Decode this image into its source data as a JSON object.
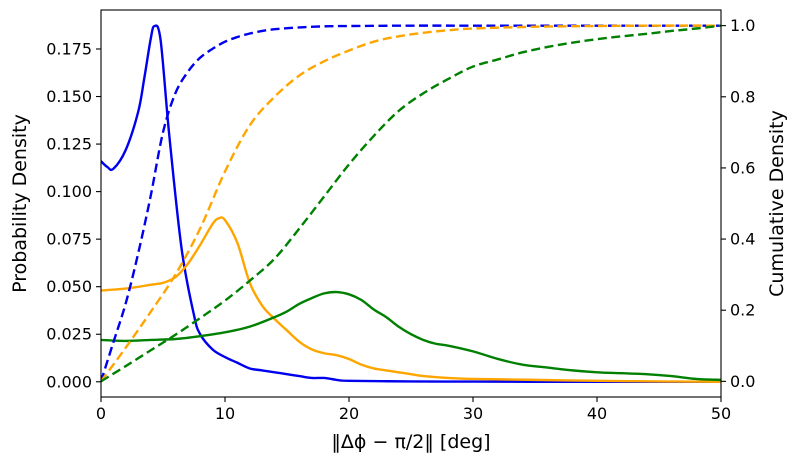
{
  "chart_data": {
    "type": "line",
    "title": "",
    "xlabel": "‖Δϕ − π/2‖ [deg]",
    "ylabel_left": "Probability Density",
    "ylabel_right": "Cumulative Density",
    "xlim": [
      0,
      50
    ],
    "ylim_left": [
      -0.008,
      0.1955
    ],
    "ylim_right": [
      -0.044,
      1.044
    ],
    "x_ticks": [
      "0",
      "10",
      "20",
      "30",
      "40",
      "50"
    ],
    "y_ticks_left": [
      "0.000",
      "0.025",
      "0.050",
      "0.075",
      "0.100",
      "0.125",
      "0.150",
      "0.175"
    ],
    "y_ticks_right": [
      "0.0",
      "0.2",
      "0.4",
      "0.6",
      "0.8",
      "1.0"
    ],
    "grid": false,
    "legend": "none",
    "series": [
      {
        "name": "blue-pdf",
        "axis": "left",
        "style": "solid",
        "color": "#0000ee",
        "points": [
          [
            0,
            0.116
          ],
          [
            0.5,
            0.113
          ],
          [
            1,
            0.112
          ],
          [
            2,
            0.122
          ],
          [
            3,
            0.142
          ],
          [
            3.5,
            0.16
          ],
          [
            4,
            0.18
          ],
          [
            4.3,
            0.187
          ],
          [
            4.8,
            0.18
          ],
          [
            5.5,
            0.13
          ],
          [
            6.5,
            0.07
          ],
          [
            7.5,
            0.035
          ],
          [
            8,
            0.025
          ],
          [
            9,
            0.017
          ],
          [
            10,
            0.013
          ],
          [
            11,
            0.01
          ],
          [
            12,
            0.007
          ],
          [
            13,
            0.006
          ],
          [
            14,
            0.005
          ],
          [
            15,
            0.004
          ],
          [
            16,
            0.003
          ],
          [
            17,
            0.002
          ],
          [
            18,
            0.002
          ],
          [
            19,
            0.001
          ],
          [
            20,
            0.0005
          ],
          [
            25,
            0.0002
          ],
          [
            30,
            0.0001
          ],
          [
            35,
            0
          ],
          [
            40,
            0
          ],
          [
            45,
            0
          ],
          [
            50,
            0
          ]
        ]
      },
      {
        "name": "orange-pdf",
        "axis": "left",
        "style": "solid",
        "color": "#ffa500",
        "points": [
          [
            0,
            0.048
          ],
          [
            2,
            0.049
          ],
          [
            4,
            0.051
          ],
          [
            5,
            0.052
          ],
          [
            6,
            0.055
          ],
          [
            7,
            0.062
          ],
          [
            8,
            0.072
          ],
          [
            9,
            0.083
          ],
          [
            9.5,
            0.086
          ],
          [
            10,
            0.085
          ],
          [
            11,
            0.073
          ],
          [
            12,
            0.052
          ],
          [
            13,
            0.04
          ],
          [
            14,
            0.033
          ],
          [
            15,
            0.027
          ],
          [
            16,
            0.021
          ],
          [
            17,
            0.017
          ],
          [
            18,
            0.015
          ],
          [
            19,
            0.014
          ],
          [
            20,
            0.012
          ],
          [
            21,
            0.009
          ],
          [
            22,
            0.007
          ],
          [
            23,
            0.006
          ],
          [
            24,
            0.005
          ],
          [
            25,
            0.004
          ],
          [
            26,
            0.003
          ],
          [
            28,
            0.002
          ],
          [
            30,
            0.0015
          ],
          [
            35,
            0.001
          ],
          [
            40,
            0.0005
          ],
          [
            45,
            0.0002
          ],
          [
            50,
            0
          ]
        ]
      },
      {
        "name": "green-pdf",
        "axis": "left",
        "style": "solid",
        "color": "#008000",
        "points": [
          [
            0,
            0.022
          ],
          [
            2,
            0.0215
          ],
          [
            4,
            0.022
          ],
          [
            6,
            0.0225
          ],
          [
            8,
            0.024
          ],
          [
            10,
            0.026
          ],
          [
            12,
            0.029
          ],
          [
            14,
            0.034
          ],
          [
            15,
            0.037
          ],
          [
            16,
            0.041
          ],
          [
            17,
            0.044
          ],
          [
            18,
            0.0465
          ],
          [
            19,
            0.0472
          ],
          [
            20,
            0.046
          ],
          [
            21,
            0.043
          ],
          [
            22,
            0.038
          ],
          [
            23,
            0.034
          ],
          [
            24,
            0.029
          ],
          [
            25,
            0.025
          ],
          [
            26,
            0.022
          ],
          [
            27,
            0.02
          ],
          [
            28,
            0.019
          ],
          [
            30,
            0.016
          ],
          [
            32,
            0.012
          ],
          [
            34,
            0.009
          ],
          [
            36,
            0.0075
          ],
          [
            38,
            0.006
          ],
          [
            40,
            0.005
          ],
          [
            42,
            0.0045
          ],
          [
            44,
            0.004
          ],
          [
            46,
            0.003
          ],
          [
            48,
            0.0015
          ],
          [
            50,
            0.001
          ]
        ]
      },
      {
        "name": "blue-cdf",
        "axis": "right",
        "style": "dashed",
        "color": "#0000ee",
        "points": [
          [
            0,
            0
          ],
          [
            1,
            0.11
          ],
          [
            2,
            0.22
          ],
          [
            3,
            0.36
          ],
          [
            4,
            0.52
          ],
          [
            5,
            0.7
          ],
          [
            6,
            0.81
          ],
          [
            7,
            0.87
          ],
          [
            8,
            0.91
          ],
          [
            9,
            0.935
          ],
          [
            10,
            0.955
          ],
          [
            11,
            0.968
          ],
          [
            12,
            0.978
          ],
          [
            13,
            0.985
          ],
          [
            14,
            0.99
          ],
          [
            16,
            0.995
          ],
          [
            18,
            0.998
          ],
          [
            20,
            0.999
          ],
          [
            25,
            1.0
          ],
          [
            30,
            1.0
          ],
          [
            40,
            1.0
          ],
          [
            50,
            1.0
          ]
        ]
      },
      {
        "name": "orange-cdf",
        "axis": "right",
        "style": "dashed",
        "color": "#ffa500",
        "points": [
          [
            0,
            0
          ],
          [
            2,
            0.095
          ],
          [
            4,
            0.195
          ],
          [
            6,
            0.3
          ],
          [
            8,
            0.43
          ],
          [
            10,
            0.59
          ],
          [
            12,
            0.72
          ],
          [
            14,
            0.8
          ],
          [
            16,
            0.86
          ],
          [
            18,
            0.9
          ],
          [
            20,
            0.93
          ],
          [
            22,
            0.955
          ],
          [
            24,
            0.97
          ],
          [
            26,
            0.98
          ],
          [
            28,
            0.987
          ],
          [
            30,
            0.992
          ],
          [
            35,
            0.997
          ],
          [
            40,
            0.999
          ],
          [
            45,
            1.0
          ],
          [
            50,
            1.0
          ]
        ]
      },
      {
        "name": "green-cdf",
        "axis": "right",
        "style": "dashed",
        "color": "#008000",
        "points": [
          [
            0,
            0
          ],
          [
            2,
            0.043
          ],
          [
            4,
            0.087
          ],
          [
            6,
            0.131
          ],
          [
            8,
            0.178
          ],
          [
            10,
            0.227
          ],
          [
            12,
            0.283
          ],
          [
            14,
            0.345
          ],
          [
            16,
            0.43
          ],
          [
            18,
            0.52
          ],
          [
            20,
            0.61
          ],
          [
            22,
            0.69
          ],
          [
            24,
            0.76
          ],
          [
            26,
            0.81
          ],
          [
            28,
            0.85
          ],
          [
            30,
            0.885
          ],
          [
            32,
            0.905
          ],
          [
            34,
            0.925
          ],
          [
            36,
            0.94
          ],
          [
            38,
            0.952
          ],
          [
            40,
            0.962
          ],
          [
            42,
            0.97
          ],
          [
            44,
            0.977
          ],
          [
            46,
            0.985
          ],
          [
            48,
            0.992
          ],
          [
            50,
            1.0
          ]
        ]
      }
    ]
  }
}
